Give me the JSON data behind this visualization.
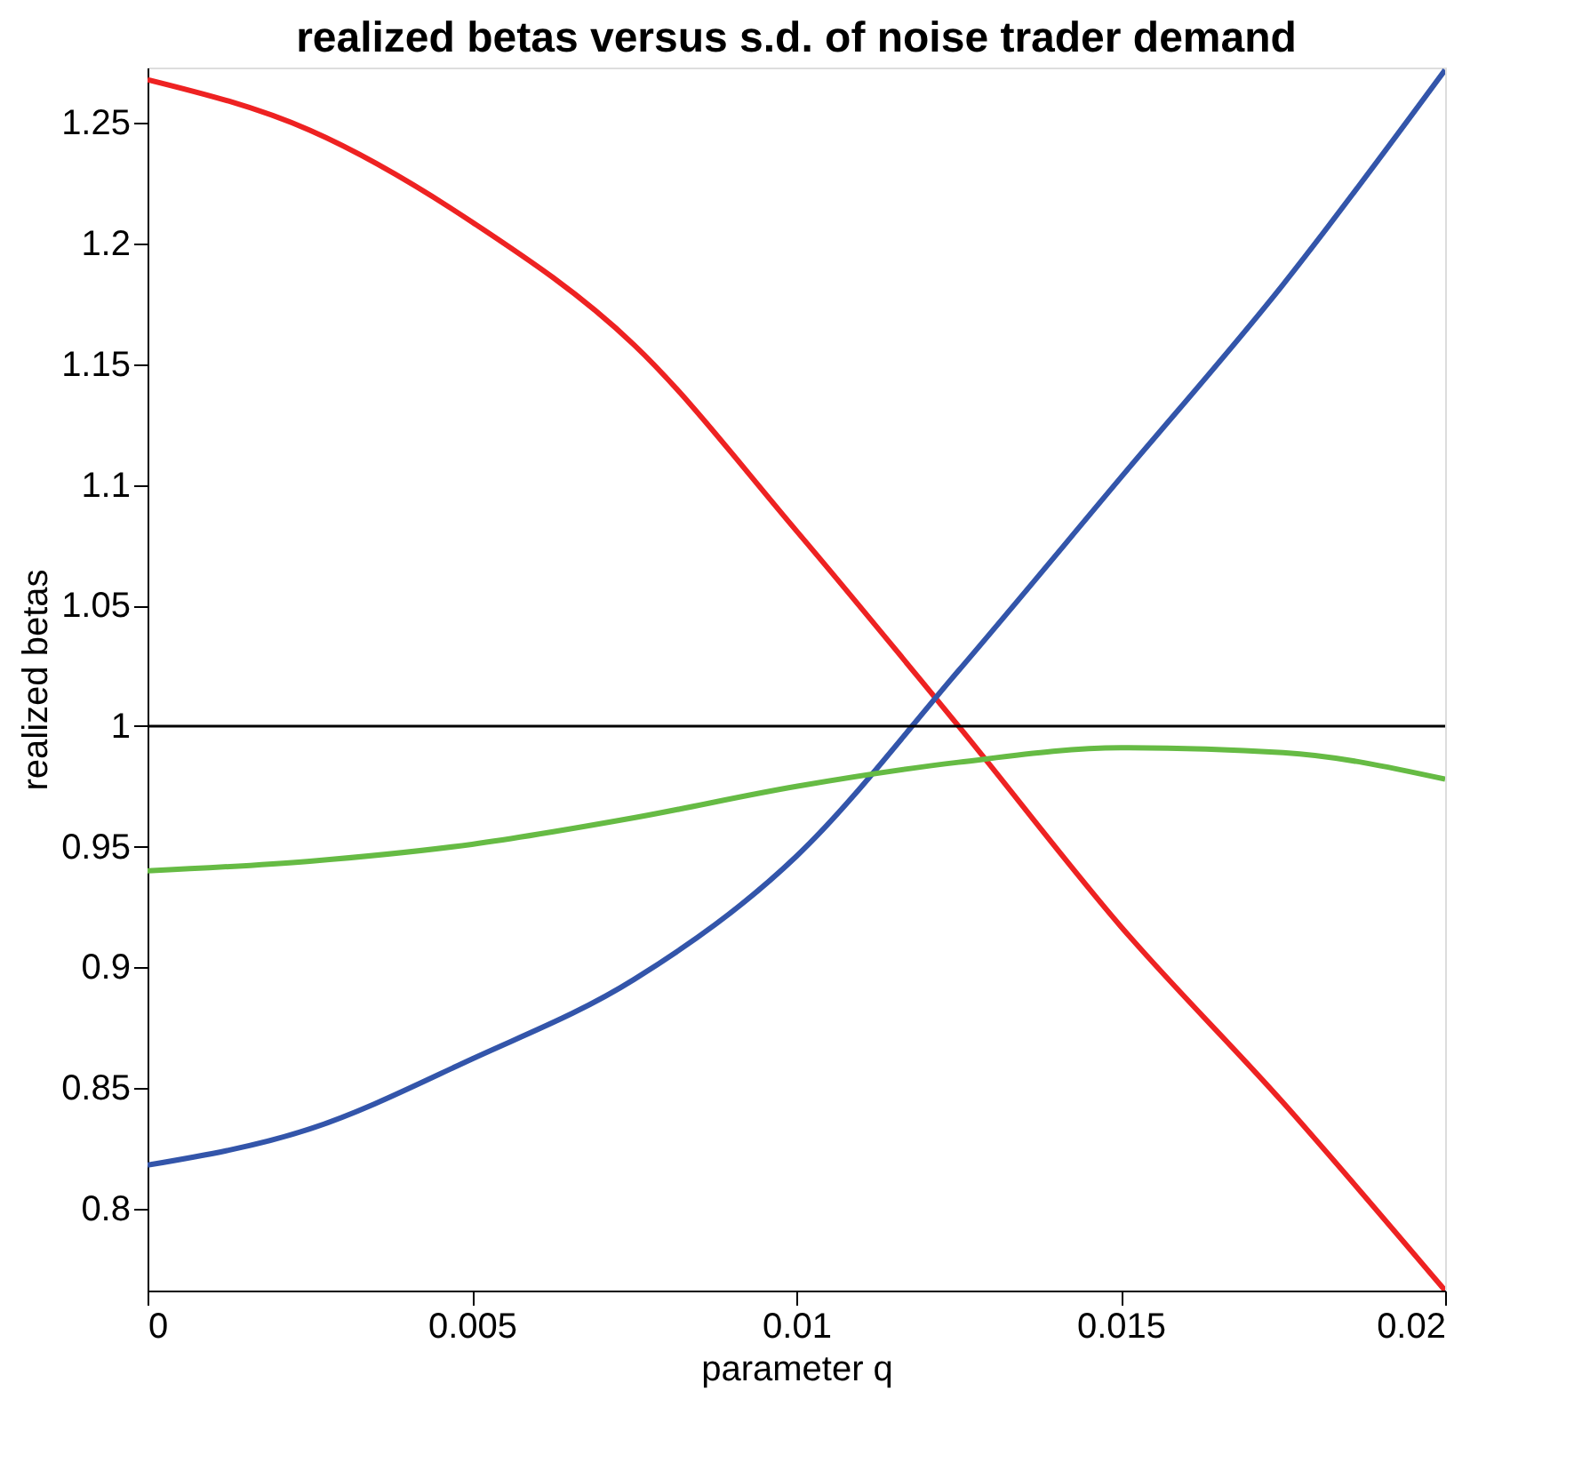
{
  "chart_data": {
    "type": "line",
    "title": "realized betas versus s.d. of noise trader demand",
    "xlabel": "parameter q",
    "ylabel": "realized betas",
    "x": [
      0,
      0.0025,
      0.005,
      0.0075,
      0.01,
      0.0125,
      0.015,
      0.0175,
      0.02
    ],
    "series": [
      {
        "color": "#ee2222",
        "values": [
          1.268,
          1.247,
          1.209,
          1.158,
          1.081,
          1.0,
          0.917,
          0.844,
          0.766
        ]
      },
      {
        "color": "#3355aa",
        "values": [
          0.818,
          0.833,
          0.862,
          0.895,
          0.946,
          1.023,
          1.103,
          1.183,
          1.272
        ]
      },
      {
        "color": "#66bb44",
        "values": [
          0.94,
          0.944,
          0.951,
          0.962,
          0.975,
          0.985,
          0.991,
          0.989,
          0.978
        ]
      }
    ],
    "xlim": [
      0,
      0.02
    ],
    "xticks": [
      0,
      0.005,
      0.01,
      0.015,
      0.02
    ],
    "ylim": [
      0.766,
      1.273
    ],
    "yticks": [
      0.8,
      0.85,
      0.9,
      0.95,
      1,
      1.05,
      1.1,
      1.15,
      1.2,
      1.25
    ],
    "ref_lines": [
      {
        "axis": "y",
        "value": 1,
        "color": "#000000"
      }
    ],
    "grid": false,
    "legend": false,
    "marker": "none",
    "line_style": "solid"
  }
}
